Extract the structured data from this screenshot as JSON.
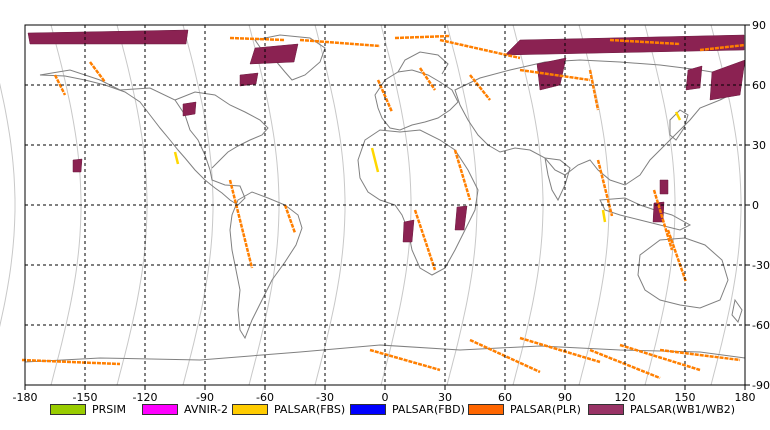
{
  "map": {
    "lon_ticks": [
      "-180",
      "-150",
      "-120",
      "-90",
      "-60",
      "-30",
      "0",
      "30",
      "60",
      "90",
      "120",
      "150",
      "180"
    ],
    "lat_ticks": [
      "90",
      "60",
      "30",
      "0",
      "-30",
      "-60",
      "-90"
    ],
    "colors": {
      "grid": "#000000",
      "orbit": "#c8c8c8",
      "coast": "#808080",
      "plr": "#ff7f00",
      "fbs": "#ffd700",
      "wb": "#8b2252"
    }
  },
  "legend": [
    {
      "label": "PRSIM",
      "color": "#99cc00"
    },
    {
      "label": "AVNIR-2",
      "color": "#ff00ff"
    },
    {
      "label": "PALSAR(FBS)",
      "color": "#ffcc00"
    },
    {
      "label": "PALSAR(FBD)",
      "color": "#0000ff"
    },
    {
      "label": "PALSAR(PLR)",
      "color": "#ff6600"
    },
    {
      "label": "PALSAR(WB1/WB2)",
      "color": "#993366"
    }
  ]
}
